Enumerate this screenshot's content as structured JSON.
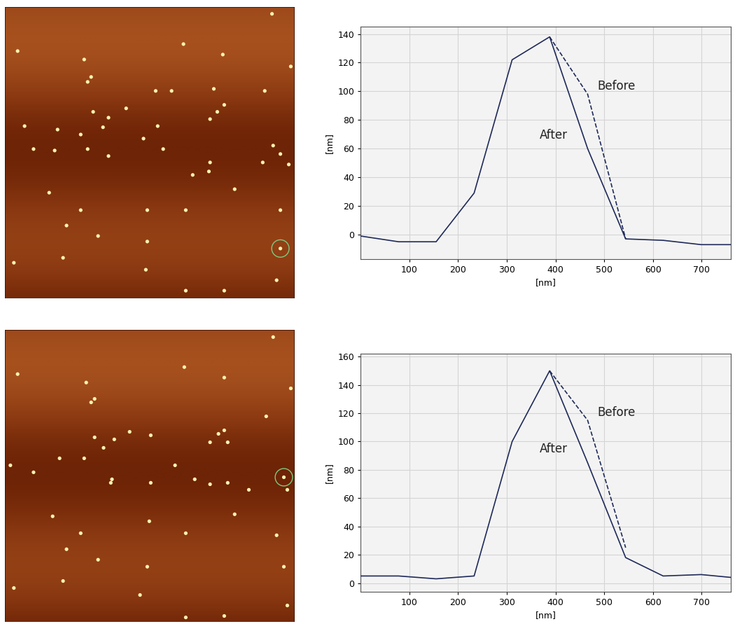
{
  "chart_data": [
    {
      "type": "scatter",
      "tick_labels": false,
      "xlim": [
        0,
        100
      ],
      "ylim": [
        0,
        100
      ],
      "series": [
        {
          "color": "#fff3b0",
          "marker": "dot",
          "x": [
            4.4,
            27.4,
            29.8,
            28.6,
            61.7,
            75.3,
            92.3,
            98.8,
            52.1,
            57.6,
            72.2,
            89.8,
            30.5,
            35.8,
            41.9,
            52.8,
            33.9,
            70.9,
            73.4,
            75.8,
            6.8,
            18.2,
            26.2,
            47.9,
            9.9,
            17.2,
            28.6,
            35.8,
            54.7,
            70.9,
            70.5,
            64.9,
            89.1,
            92.7,
            95.2,
            98.1,
            15.3,
            26.2,
            21.3,
            49.2,
            62.5,
            79.4,
            95.2,
            32.2,
            49.2,
            20.1,
            93.9,
            75.8,
            48.7,
            3.1,
            62.5,
            95.2
          ],
          "values": [
            84.8,
            81.9,
            75.9,
            74.2,
            87.2,
            83.6,
            97.6,
            79.5,
            71.1,
            71.1,
            71.8,
            71.1,
            63.9,
            61.9,
            65.1,
            59.0,
            58.6,
            61.4,
            63.9,
            66.3,
            59.0,
            57.8,
            56.1,
            54.7,
            51.1,
            50.6,
            51.1,
            48.7,
            51.1,
            46.5,
            43.4,
            42.2,
            46.5,
            52.3,
            49.4,
            45.8,
            36.1,
            30.1,
            24.8,
            30.1,
            30.1,
            37.3,
            30.1,
            21.2,
            19.3,
            13.7,
            6.0,
            2.4,
            9.6,
            12.0,
            2.4,
            16.9
          ]
        },
        {
          "color": "#7fc97f",
          "marker": "ring",
          "x": [
            95.2
          ],
          "values": [
            16.9
          ]
        }
      ]
    },
    {
      "type": "line",
      "xlabel": "[nm]",
      "ylabel": "[nm]",
      "x": [
        0,
        78,
        155,
        233,
        311,
        388,
        466,
        544,
        621,
        699,
        760
      ],
      "xlim": [
        0,
        760
      ],
      "xticks": [
        100,
        200,
        300,
        400,
        500,
        600,
        700
      ],
      "ylim": [
        -17,
        145
      ],
      "yticks": [
        0,
        20,
        40,
        60,
        80,
        100,
        120,
        140
      ],
      "grid": true,
      "series": [
        {
          "name": "After",
          "color": "#1f2a5a",
          "line_style": "solid",
          "values": [
            -1,
            -5,
            -5,
            29,
            122,
            138,
            60,
            -3,
            -4,
            -7,
            -7
          ]
        },
        {
          "name": "Before",
          "color": "#1f2a5a",
          "line_style": "dashed",
          "values": [
            null,
            null,
            null,
            null,
            null,
            138,
            98,
            -3,
            null,
            null,
            null
          ]
        }
      ]
    },
    {
      "type": "scatter",
      "tick_labels": false,
      "xlim": [
        0,
        100
      ],
      "ylim": [
        0,
        100
      ],
      "series": [
        {
          "color": "#fff3b0",
          "marker": "dot",
          "x": [
            4.4,
            28.1,
            29.8,
            31.0,
            62.0,
            75.8,
            92.7,
            98.8,
            31.0,
            37.8,
            34.1,
            43.1,
            50.4,
            70.9,
            73.8,
            75.8,
            77.0,
            90.3,
            1.9,
            9.9,
            18.9,
            27.4,
            37.0,
            36.6,
            58.8,
            50.4,
            65.6,
            70.9,
            77.0,
            84.3,
            97.6,
            96.4,
            16.5,
            21.3,
            26.2,
            49.9,
            62.5,
            79.4,
            93.9,
            32.2,
            49.2,
            20.1,
            96.4,
            97.6,
            75.8,
            46.7,
            3.1,
            62.5
          ],
          "values": [
            84.9,
            82.0,
            75.2,
            76.4,
            87.3,
            83.7,
            97.6,
            80.0,
            63.2,
            62.5,
            59.6,
            65.1,
            63.9,
            61.5,
            64.4,
            65.6,
            61.5,
            70.4,
            53.6,
            51.2,
            56.0,
            56.0,
            48.8,
            47.6,
            53.6,
            47.6,
            48.8,
            47.1,
            47.6,
            45.2,
            45.2,
            49.5,
            36.1,
            24.8,
            30.3,
            34.4,
            30.3,
            36.8,
            29.6,
            21.2,
            18.8,
            13.9,
            18.8,
            5.5,
            1.9,
            9.1,
            11.5,
            1.4
          ]
        },
        {
          "color": "#7fc97f",
          "marker": "ring",
          "x": [
            96.4
          ],
          "values": [
            49.5
          ]
        }
      ]
    },
    {
      "type": "line",
      "xlabel": "[nm]",
      "ylabel": "[nm]",
      "x": [
        0,
        78,
        155,
        233,
        311,
        388,
        466,
        544,
        621,
        699,
        760
      ],
      "xlim": [
        0,
        760
      ],
      "xticks": [
        100,
        200,
        300,
        400,
        500,
        600,
        700
      ],
      "ylim": [
        -6,
        162
      ],
      "yticks": [
        0,
        20,
        40,
        60,
        80,
        100,
        120,
        140,
        160
      ],
      "grid": true,
      "series": [
        {
          "name": "After",
          "color": "#1f2a5a",
          "line_style": "solid",
          "values": [
            5,
            5,
            3,
            5,
            100,
            150,
            85,
            18,
            5,
            6,
            4
          ]
        },
        {
          "name": "Before",
          "color": "#1f2a5a",
          "line_style": "dashed",
          "values": [
            null,
            null,
            null,
            null,
            null,
            150,
            115,
            25,
            null,
            null,
            null
          ]
        }
      ]
    }
  ]
}
